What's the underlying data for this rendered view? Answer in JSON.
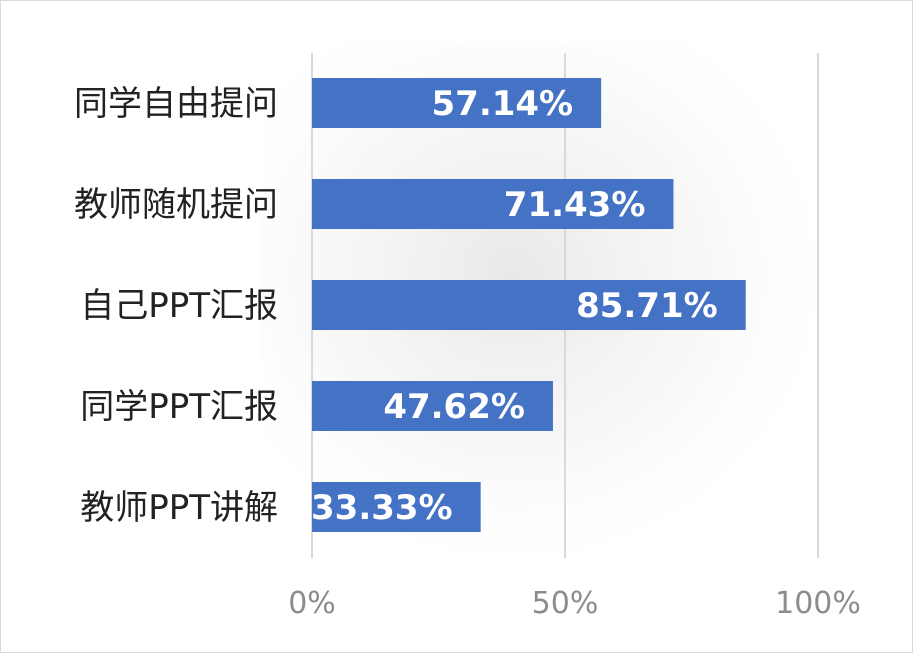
{
  "chart_data": {
    "type": "bar",
    "orientation": "horizontal",
    "categories": [
      "同学自由提问",
      "教师随机提问",
      "自己PPT汇报",
      "同学PPT汇报",
      "教师PPT讲解"
    ],
    "values": [
      57.14,
      71.43,
      85.71,
      47.62,
      33.33
    ],
    "data_labels": [
      "57.14%",
      "71.43%",
      "85.71%",
      "47.62%",
      "33.33%"
    ],
    "xlim": [
      0,
      100
    ],
    "x_ticks": [
      0,
      50,
      100
    ],
    "x_tick_labels": [
      "0%",
      "50%",
      "100%"
    ],
    "grid": true,
    "legend": "none",
    "colors": {
      "bar": "#4472c4",
      "grid": "#d9d9d9",
      "tick_text": "#8c8c8c",
      "category_text": "#222222",
      "data_label_text": "#ffffff"
    }
  }
}
